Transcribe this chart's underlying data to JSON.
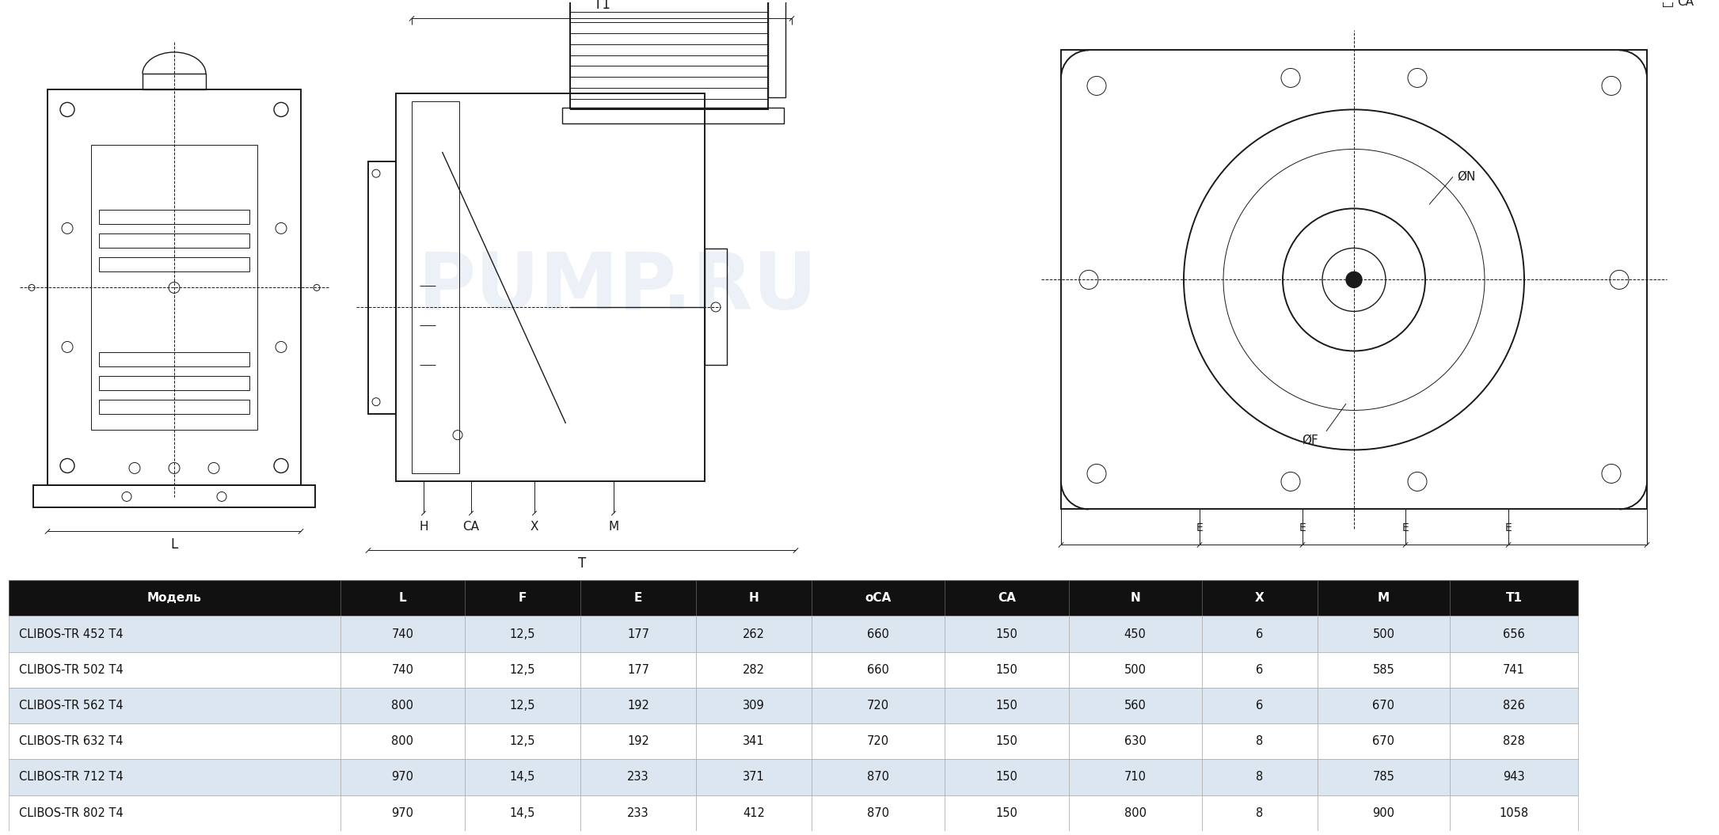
{
  "bg_color": "#ffffff",
  "drawing_color": "#000000",
  "table_header_bg": "#111111",
  "table_header_fg": "#ffffff",
  "table_row_bg_even": "#dce6f0",
  "table_row_bg_odd": "#ffffff",
  "table_text_color": "#111111",
  "table_headers": [
    "Модель",
    "L",
    "F",
    "E",
    "H",
    "оCA",
    "CA",
    "N",
    "X",
    "M",
    "T1"
  ],
  "table_data": [
    [
      "CLIBOS-TR 452 T4",
      "740",
      "12,5",
      "177",
      "262",
      "660",
      "150",
      "450",
      "6",
      "500",
      "656"
    ],
    [
      "CLIBOS-TR 502 T4",
      "740",
      "12,5",
      "177",
      "282",
      "660",
      "150",
      "500",
      "6",
      "585",
      "741"
    ],
    [
      "CLIBOS-TR 562 T4",
      "800",
      "12,5",
      "192",
      "309",
      "720",
      "150",
      "560",
      "6",
      "670",
      "826"
    ],
    [
      "CLIBOS-TR 632 T4",
      "800",
      "12,5",
      "192",
      "341",
      "720",
      "150",
      "630",
      "8",
      "670",
      "828"
    ],
    [
      "CLIBOS-TR 712 T4",
      "970",
      "14,5",
      "233",
      "371",
      "870",
      "150",
      "710",
      "8",
      "785",
      "943"
    ],
    [
      "CLIBOS-TR 802 T4",
      "970",
      "14,5",
      "233",
      "412",
      "870",
      "150",
      "800",
      "8",
      "900",
      "1058"
    ]
  ],
  "watermark_color": "#c8d8e8",
  "watermark_alpha": 0.35
}
